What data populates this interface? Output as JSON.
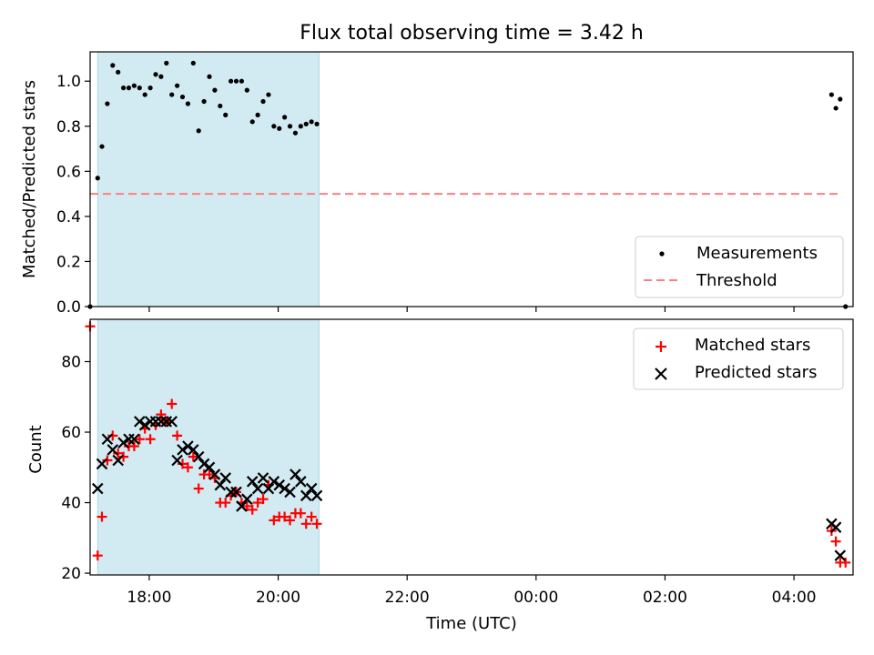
{
  "figure": {
    "title": "Flux total observing time = 3.42 h"
  },
  "colors": {
    "shade": "#add8e6",
    "threshold": "#ff7f7f",
    "measurement": "#000000",
    "matched": "#ff0000",
    "predicted": "#000000"
  },
  "chart_data": [
    {
      "type": "scatter",
      "ylabel": "Matched/Predicted stars",
      "xlim": [
        "17:05",
        "04:55"
      ],
      "ylim": [
        0,
        1.13
      ],
      "yticks": [
        "0.0",
        "0.2",
        "0.4",
        "0.6",
        "0.8",
        "1.0"
      ],
      "shaded_interval": [
        "17:12",
        "20:38"
      ],
      "legend": {
        "placement": "lower-right",
        "entries": [
          "Measurements",
          "Threshold"
        ]
      },
      "series": [
        {
          "name": "Measurements",
          "marker": "dot",
          "x": [
            "17:05",
            "17:12",
            "17:16",
            "17:21",
            "17:26",
            "17:31",
            "17:36",
            "17:41",
            "17:46",
            "17:51",
            "17:56",
            "18:01",
            "18:06",
            "18:11",
            "18:16",
            "18:21",
            "18:26",
            "18:31",
            "18:36",
            "18:41",
            "18:46",
            "18:51",
            "18:56",
            "19:01",
            "19:06",
            "19:11",
            "19:16",
            "19:21",
            "19:26",
            "19:31",
            "19:36",
            "19:41",
            "19:46",
            "19:51",
            "19:56",
            "20:01",
            "20:06",
            "20:11",
            "20:16",
            "20:21",
            "20:26",
            "20:31",
            "20:36",
            "04:35",
            "04:39",
            "04:43",
            "04:48"
          ],
          "y": [
            0.0,
            0.57,
            0.71,
            0.9,
            1.07,
            1.04,
            0.97,
            0.97,
            0.98,
            0.97,
            0.94,
            0.97,
            1.03,
            1.02,
            1.08,
            0.94,
            0.98,
            0.93,
            0.9,
            1.08,
            0.78,
            0.91,
            1.02,
            0.96,
            0.89,
            0.85,
            1.0,
            1.0,
            1.0,
            0.96,
            0.82,
            0.85,
            0.91,
            0.94,
            0.8,
            0.79,
            0.84,
            0.8,
            0.77,
            0.8,
            0.81,
            0.82,
            0.81,
            0.94,
            0.88,
            0.92,
            0.0
          ]
        },
        {
          "name": "Threshold",
          "style": "dashed",
          "x": [
            "17:05",
            "04:43"
          ],
          "y": [
            0.5,
            0.5
          ]
        }
      ]
    },
    {
      "type": "scatter",
      "xlabel": "Time (UTC)",
      "ylabel": "Count",
      "xlim": [
        "17:05",
        "04:55"
      ],
      "xticks": [
        "18:00",
        "20:00",
        "22:00",
        "00:00",
        "02:00",
        "04:00"
      ],
      "ylim": [
        19.5,
        92
      ],
      "yticks": [
        "20",
        "40",
        "60",
        "80"
      ],
      "shaded_interval": [
        "17:12",
        "20:38"
      ],
      "legend": {
        "placement": "upper-right",
        "entries": [
          "Matched stars",
          "Predicted stars"
        ]
      },
      "series": [
        {
          "name": "Matched stars",
          "marker": "plus",
          "x": [
            "17:05",
            "17:12",
            "17:16",
            "17:21",
            "17:26",
            "17:31",
            "17:36",
            "17:41",
            "17:46",
            "17:51",
            "17:56",
            "18:01",
            "18:06",
            "18:11",
            "18:16",
            "18:21",
            "18:26",
            "18:31",
            "18:36",
            "18:41",
            "18:46",
            "18:51",
            "18:56",
            "19:01",
            "19:06",
            "19:11",
            "19:16",
            "19:21",
            "19:26",
            "19:31",
            "19:36",
            "19:41",
            "19:46",
            "19:51",
            "19:56",
            "20:01",
            "20:06",
            "20:11",
            "20:16",
            "20:21",
            "20:26",
            "20:31",
            "20:36",
            "04:35",
            "04:39",
            "04:43",
            "04:48"
          ],
          "y": [
            90,
            25,
            36,
            52,
            59,
            54,
            53,
            56,
            56,
            58,
            61,
            58,
            62,
            65,
            63,
            68,
            59,
            51,
            50,
            53,
            44,
            48,
            48,
            47,
            40,
            40,
            42,
            43,
            40,
            39,
            38,
            40,
            41,
            45,
            35,
            36,
            36,
            35,
            37,
            37,
            34,
            36,
            34,
            32,
            29,
            23,
            23
          ]
        },
        {
          "name": "Predicted stars",
          "marker": "x",
          "x": [
            "17:12",
            "17:16",
            "17:21",
            "17:26",
            "17:31",
            "17:36",
            "17:41",
            "17:46",
            "17:51",
            "17:56",
            "18:01",
            "18:06",
            "18:11",
            "18:16",
            "18:21",
            "18:26",
            "18:31",
            "18:36",
            "18:41",
            "18:46",
            "18:51",
            "18:56",
            "19:01",
            "19:06",
            "19:11",
            "19:16",
            "19:21",
            "19:26",
            "19:31",
            "19:36",
            "19:41",
            "19:46",
            "19:51",
            "19:56",
            "20:01",
            "20:06",
            "20:11",
            "20:16",
            "20:21",
            "20:26",
            "20:31",
            "20:36",
            "04:35",
            "04:39",
            "04:43"
          ],
          "y": [
            44,
            51,
            58,
            55,
            52,
            57,
            58,
            58,
            63,
            62,
            63,
            63,
            63,
            63,
            63,
            52,
            55,
            56,
            55,
            53,
            51,
            50,
            48,
            45,
            47,
            43,
            43,
            39,
            41,
            46,
            44,
            47,
            44,
            46,
            45,
            44,
            43,
            48,
            46,
            42,
            44,
            42,
            34,
            33,
            25
          ]
        }
      ]
    }
  ]
}
